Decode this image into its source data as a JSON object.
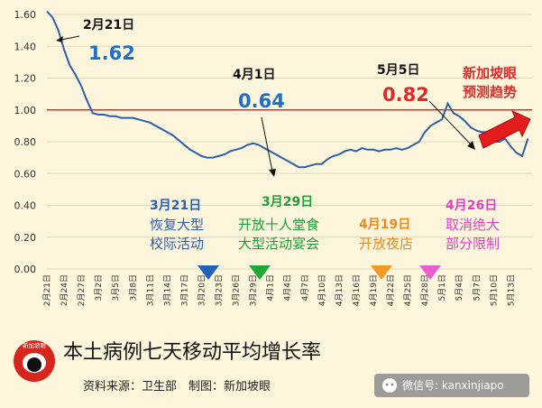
{
  "chart_data": {
    "type": "line",
    "title": "本土病例七天移动平均增长率",
    "ylim": [
      0,
      1.6
    ],
    "y_ticks": [
      "0.00",
      "0.20",
      "0.40",
      "0.60",
      "0.80",
      "1.00",
      "1.20",
      "1.40",
      "1.60"
    ],
    "reference_line": {
      "value": 1.0,
      "color": "#e02a2a"
    },
    "line_color": "#2f5fa8",
    "x_tick_labels": [
      "2月21日",
      "2月24日",
      "2月27日",
      "3月2日",
      "3月5日",
      "3月8日",
      "3月11日",
      "3月14日",
      "3月17日",
      "3月20日",
      "3月23日",
      "3月26日",
      "3月29日",
      "4月1日",
      "4月4日",
      "4月7日",
      "4月10日",
      "4月13日",
      "4月16日",
      "4月19日",
      "4月22日",
      "4月25日",
      "4月28日",
      "5月1日",
      "5月4日",
      "5月7日",
      "5月10日",
      "5月13日"
    ],
    "x_start_label": "2月21日",
    "series": [
      {
        "values": [
          1.62,
          1.58,
          1.5,
          1.38,
          1.28,
          1.22,
          1.15,
          1.06,
          0.98,
          0.97,
          0.97,
          0.96,
          0.96,
          0.95,
          0.95,
          0.95,
          0.94,
          0.93,
          0.92,
          0.9,
          0.88,
          0.86,
          0.84,
          0.81,
          0.78,
          0.75,
          0.73,
          0.71,
          0.7,
          0.7,
          0.71,
          0.72,
          0.74,
          0.75,
          0.76,
          0.78,
          0.79,
          0.78,
          0.76,
          0.74,
          0.72,
          0.7,
          0.68,
          0.66,
          0.64,
          0.64,
          0.65,
          0.66,
          0.66,
          0.69,
          0.71,
          0.72,
          0.74,
          0.75,
          0.74,
          0.76,
          0.75,
          0.75,
          0.74,
          0.75,
          0.75,
          0.76,
          0.75,
          0.76,
          0.78,
          0.8,
          0.86,
          0.9,
          0.92,
          0.94,
          1.04,
          0.98,
          0.96,
          0.93,
          0.89,
          0.87,
          0.86,
          0.86,
          0.8,
          0.8,
          0.82,
          0.77,
          0.73,
          0.71,
          0.82
        ]
      }
    ],
    "annotations": [
      {
        "date": "2月21日",
        "value": "1.62",
        "color": "#1f6fc2"
      },
      {
        "date": "4月1日",
        "value": "0.64",
        "color": "#1f6fc2"
      },
      {
        "date": "5月5日",
        "value": "0.82",
        "color": "#e02a2a"
      }
    ],
    "forecast_label": [
      "新加坡眼",
      "预测趋势"
    ],
    "events": [
      {
        "date": "3月21日",
        "lines": [
          "恢复大型",
          "校际活动"
        ],
        "color": "#2d5fb0",
        "marker_color": "#1f63b8"
      },
      {
        "date": "3月29日",
        "lines": [
          "开放十人堂食",
          "大型活动宴会"
        ],
        "color": "#1e9e3a",
        "marker_color": "#21a83c"
      },
      {
        "date": "4月19日",
        "lines": [
          "开放夜店"
        ],
        "color": "#f08a1c",
        "marker_color": "#f29a27"
      },
      {
        "date": "4月26日",
        "lines": [
          "取消绝大",
          "部分限制"
        ],
        "color": "#e043c0",
        "marker_color": "#ea5fd0"
      }
    ]
  },
  "footer": {
    "logo_text": "新加坡眼",
    "title": "本土病例七天移动平均增长率",
    "source": "资料来源：卫生部　制图：新加坡眼",
    "wechat": "微信号: kanxinjiapo"
  }
}
